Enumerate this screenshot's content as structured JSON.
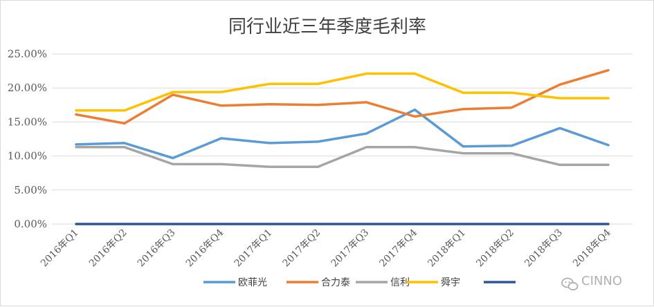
{
  "chart_data": {
    "type": "line",
    "title": "同行业近三年季度毛利率",
    "xlabel": "",
    "ylabel": "",
    "ylim": [
      0,
      25
    ],
    "y_tick_values": [
      0,
      5,
      10,
      15,
      20,
      25
    ],
    "y_tick_labels": [
      "0.00%",
      "5.00%",
      "10.00%",
      "15.00%",
      "20.00%",
      "25.00%"
    ],
    "grid": true,
    "legend_position": "bottom",
    "categories": [
      "2016年Q1",
      "2016年Q2",
      "2016年Q3",
      "2016年Q4",
      "2017年Q1",
      "2017年Q2",
      "2017年Q3",
      "2017年Q4",
      "2018年Q1",
      "2018年Q2",
      "2018年Q3",
      "2018年Q4"
    ],
    "series": [
      {
        "name": "欧菲光",
        "color": "#5b9bd5",
        "values": [
          11.7,
          11.9,
          9.7,
          12.6,
          11.9,
          12.1,
          13.3,
          16.8,
          11.4,
          11.5,
          14.1,
          11.6
        ]
      },
      {
        "name": "合力泰",
        "color": "#ed7d31",
        "values": [
          16.1,
          14.8,
          19.0,
          17.4,
          17.6,
          17.5,
          17.9,
          15.8,
          16.9,
          17.1,
          20.5,
          22.6
        ]
      },
      {
        "name": "信利",
        "color": "#a5a5a5",
        "values": [
          11.3,
          11.3,
          8.8,
          8.8,
          8.4,
          8.4,
          11.3,
          11.3,
          10.4,
          10.4,
          8.7,
          8.7
        ]
      },
      {
        "name": "舜宇",
        "color": "#ffc000",
        "values": [
          16.7,
          16.7,
          19.4,
          19.4,
          20.6,
          20.6,
          22.1,
          22.1,
          19.3,
          19.3,
          18.5,
          18.5
        ]
      },
      {
        "name": "",
        "color": "#2f5597",
        "values": [
          0,
          0,
          0,
          0,
          0,
          0,
          0,
          0,
          0,
          0,
          0,
          0
        ]
      }
    ]
  },
  "watermark": {
    "text": "CINNO",
    "icon": "wechat-icon"
  }
}
